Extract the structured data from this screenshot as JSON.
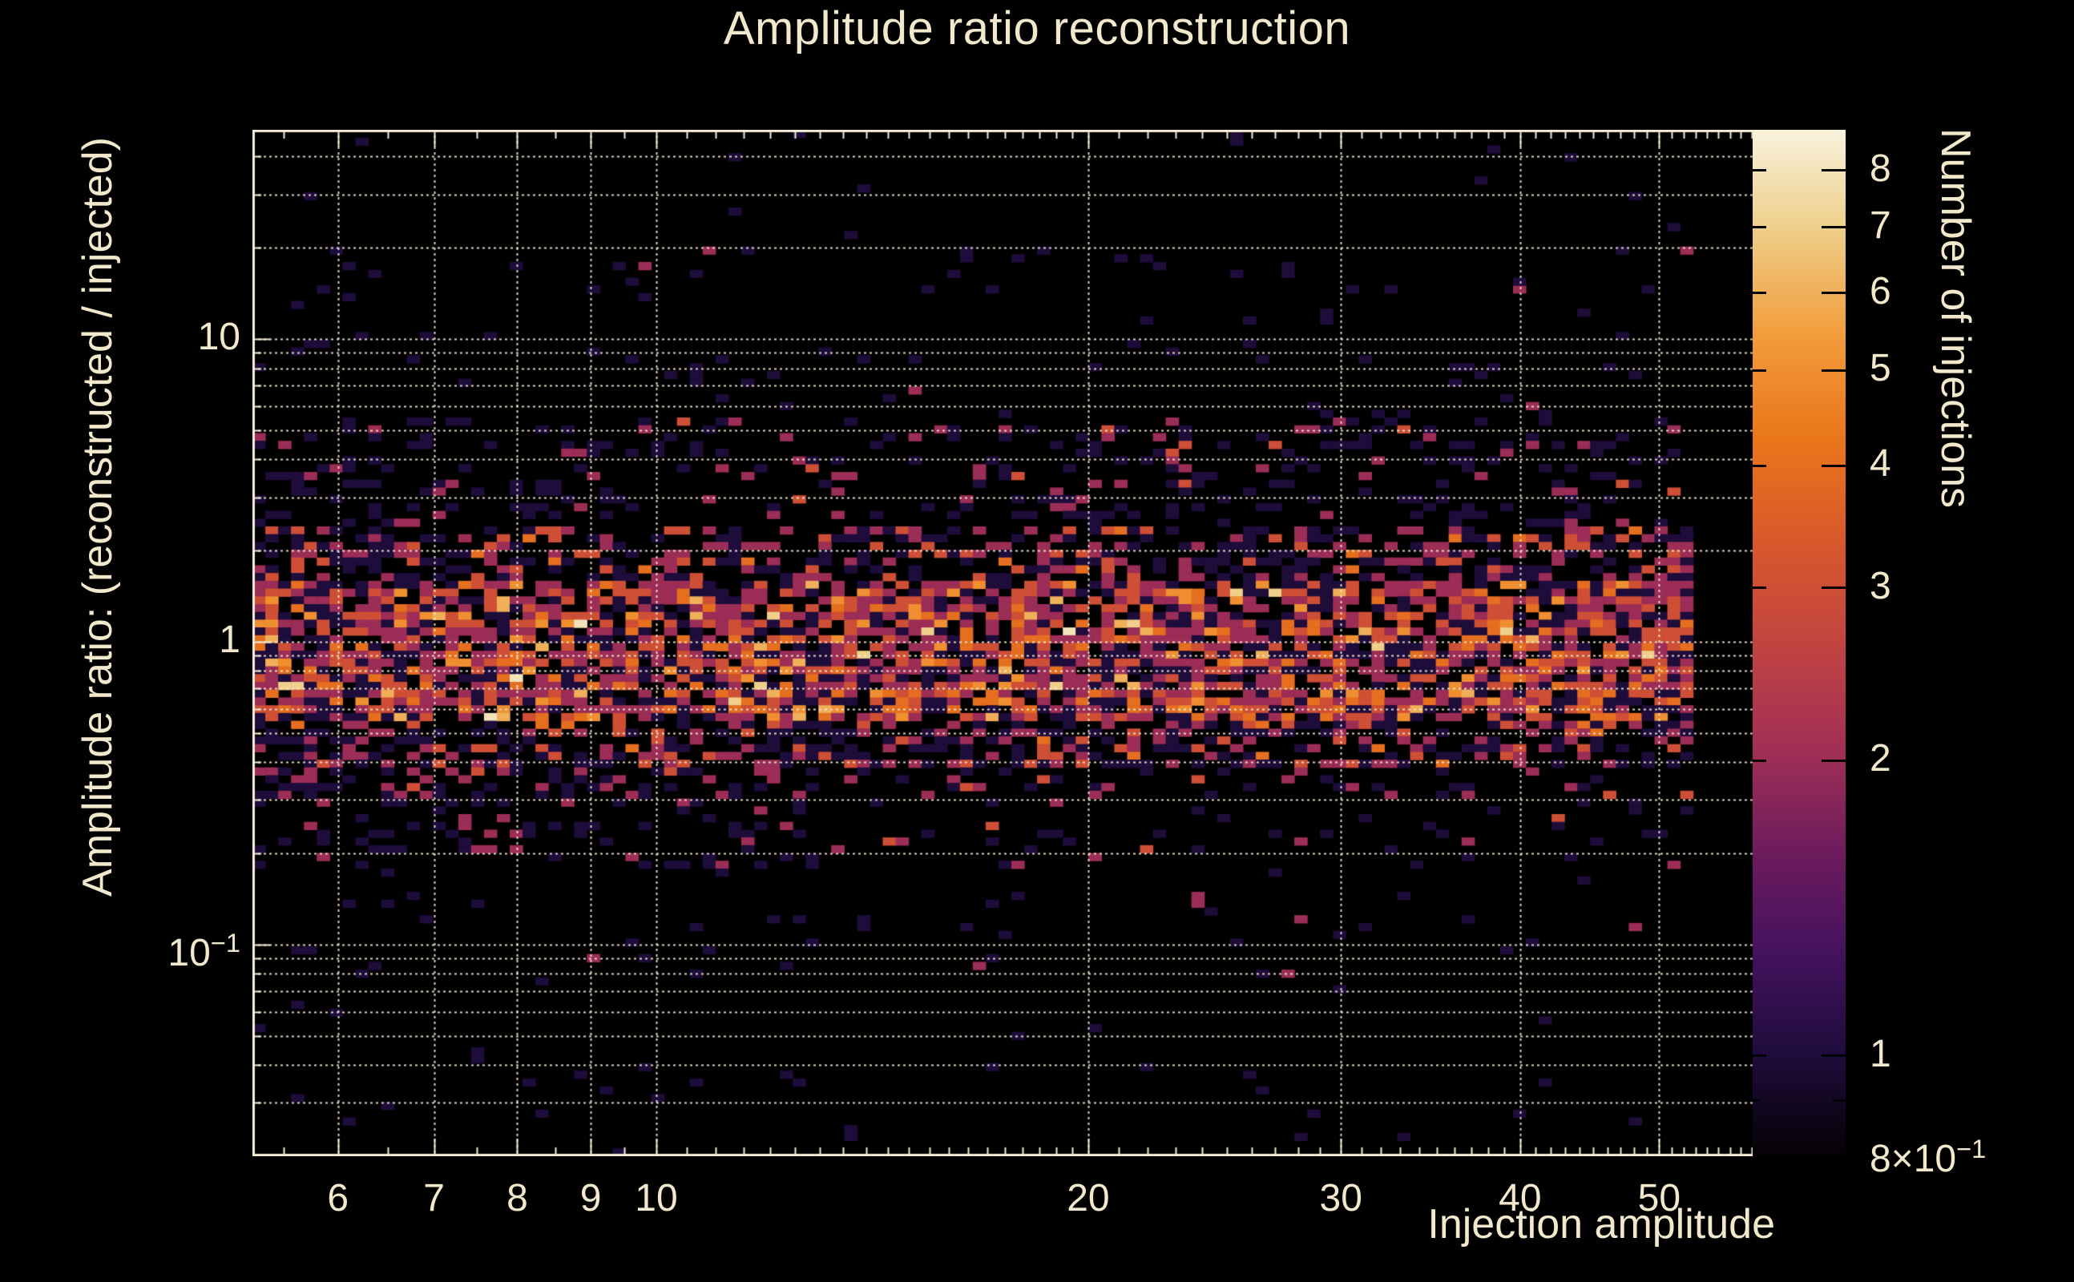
{
  "title": "Amplitude ratio reconstruction",
  "colors": {
    "background": "#000000",
    "text": "#f2e9cd",
    "frame": "#f3ebd6",
    "grid": "#f3ebd6"
  },
  "chart_data": {
    "type": "heatmap",
    "title": "Amplitude ratio reconstruction",
    "xlabel": "Injection amplitude",
    "ylabel": "Amplitude ratio: (reconstructed / injected)",
    "zlabel": "Number of injections",
    "grid": "dotted, major and minor log lines",
    "legend_position": "colorbar-right",
    "x_axis": {
      "scale": "log",
      "min": 5.23,
      "max": 61.0,
      "ticks": [
        {
          "v": 6,
          "base": "6"
        },
        {
          "v": 7,
          "base": "7"
        },
        {
          "v": 8,
          "base": "8"
        },
        {
          "v": 9,
          "base": "9"
        },
        {
          "v": 10,
          "base": "10"
        },
        {
          "v": 20,
          "base": "20"
        },
        {
          "v": 30,
          "base": "30"
        },
        {
          "v": 40,
          "base": "40"
        },
        {
          "v": 50,
          "base": "50"
        }
      ]
    },
    "y_axis": {
      "scale": "log",
      "min": 0.02,
      "max": 49.0,
      "ticks": [
        {
          "v": 10,
          "base": "10"
        },
        {
          "v": 1,
          "base": "1"
        },
        {
          "v": 0.1,
          "base": "10",
          "sup": "−1"
        }
      ]
    },
    "z_axis": {
      "scale": "log",
      "min": 0.79,
      "max": 8.8,
      "ticks": [
        {
          "v": 8,
          "base": "8"
        },
        {
          "v": 7,
          "base": "7"
        },
        {
          "v": 6,
          "base": "6"
        },
        {
          "v": 5,
          "base": "5"
        },
        {
          "v": 4,
          "base": "4"
        },
        {
          "v": 3,
          "base": "3"
        },
        {
          "v": 2,
          "base": "2"
        },
        {
          "v": 1,
          "base": "1"
        },
        {
          "v": 0.8,
          "base": "8×10",
          "sup": "−1"
        }
      ],
      "minor_ticks": [
        0.9
      ]
    },
    "colormap": {
      "name": "inferno-like",
      "stops": [
        [
          0.0,
          "#050104"
        ],
        [
          0.1,
          "#1f0c3c"
        ],
        [
          0.2,
          "#45125e"
        ],
        [
          0.3,
          "#6f1c5d"
        ],
        [
          0.4,
          "#a33055"
        ],
        [
          0.5,
          "#c24441"
        ],
        [
          0.6,
          "#d8582b"
        ],
        [
          0.7,
          "#ea761b"
        ],
        [
          0.8,
          "#f29c3b"
        ],
        [
          0.9,
          "#eecd86"
        ],
        [
          1.0,
          "#f8f2dc"
        ]
      ]
    },
    "bins": {
      "nx": 119,
      "ny": 132
    },
    "data_x_max": 52.3,
    "generator": {
      "seed": 12,
      "regions": [
        {
          "y_min": 20,
          "y_max": 49,
          "fill": 0.009,
          "counts": [
            1
          ],
          "weights": [
            1
          ]
        },
        {
          "y_min": 5.5,
          "y_max": 20,
          "fill": 0.035,
          "counts": [
            1,
            2
          ],
          "weights": [
            0.85,
            0.15
          ]
        },
        {
          "y_min": 2.4,
          "y_max": 5.5,
          "fill": 0.17,
          "counts": [
            1,
            2,
            3
          ],
          "weights": [
            0.72,
            0.24,
            0.04
          ]
        },
        {
          "y_min": 1.6,
          "y_max": 2.4,
          "fill": 0.46,
          "counts": [
            1,
            2,
            3,
            4
          ],
          "weights": [
            0.48,
            0.33,
            0.15,
            0.04
          ]
        },
        {
          "y_min": 0.55,
          "y_max": 1.6,
          "fill": 0.8,
          "counts": [
            1,
            2,
            3,
            4,
            5,
            6,
            7,
            8
          ],
          "weights": [
            0.28,
            0.29,
            0.23,
            0.12,
            0.05,
            0.02,
            0.008,
            0.002
          ]
        },
        {
          "y_min": 0.38,
          "y_max": 0.55,
          "fill": 0.5,
          "counts": [
            1,
            2,
            3,
            4
          ],
          "weights": [
            0.45,
            0.33,
            0.17,
            0.05
          ]
        },
        {
          "y_min": 0.3,
          "y_max": 0.38,
          "fill": 0.15,
          "counts": [
            1,
            2,
            3
          ],
          "weights": [
            0.6,
            0.3,
            0.1
          ]
        },
        {
          "y_min": 0.18,
          "y_max": 0.3,
          "fill": 0.07,
          "counts": [
            1,
            2,
            3
          ],
          "weights": [
            0.75,
            0.2,
            0.05
          ]
        },
        {
          "y_min": 0.08,
          "y_max": 0.18,
          "fill": 0.03,
          "counts": [
            1,
            2
          ],
          "weights": [
            0.85,
            0.15
          ]
        },
        {
          "y_min": 0.02,
          "y_max": 0.08,
          "fill": 0.013,
          "counts": [
            1
          ],
          "weights": [
            1
          ]
        }
      ],
      "x_mods": [
        {
          "x_max": 13,
          "y_min": 0.18,
          "y_max": 0.38,
          "fill_mult": 2.4
        },
        {
          "x_min": 49.5,
          "y_min": 0.5,
          "y_max": 2.6,
          "fill_mult": 1.8
        }
      ],
      "outliers": [
        [
          27.4,
          17,
          1
        ],
        [
          40.3,
          15.5,
          1
        ],
        [
          15.4,
          14.5,
          1
        ],
        [
          5.8,
          9.5,
          1
        ],
        [
          29.5,
          5.6,
          1
        ],
        [
          31.8,
          5.6,
          1
        ],
        [
          37.3,
          7.6,
          1
        ],
        [
          48.5,
          7.6,
          1
        ],
        [
          51.0,
          23,
          1
        ],
        [
          44.0,
          12.5,
          1
        ],
        [
          8.4,
          0.027,
          1
        ],
        [
          13.7,
          0.023,
          1
        ],
        [
          22.0,
          0.039,
          1
        ],
        [
          6.1,
          0.026,
          1
        ]
      ]
    }
  }
}
